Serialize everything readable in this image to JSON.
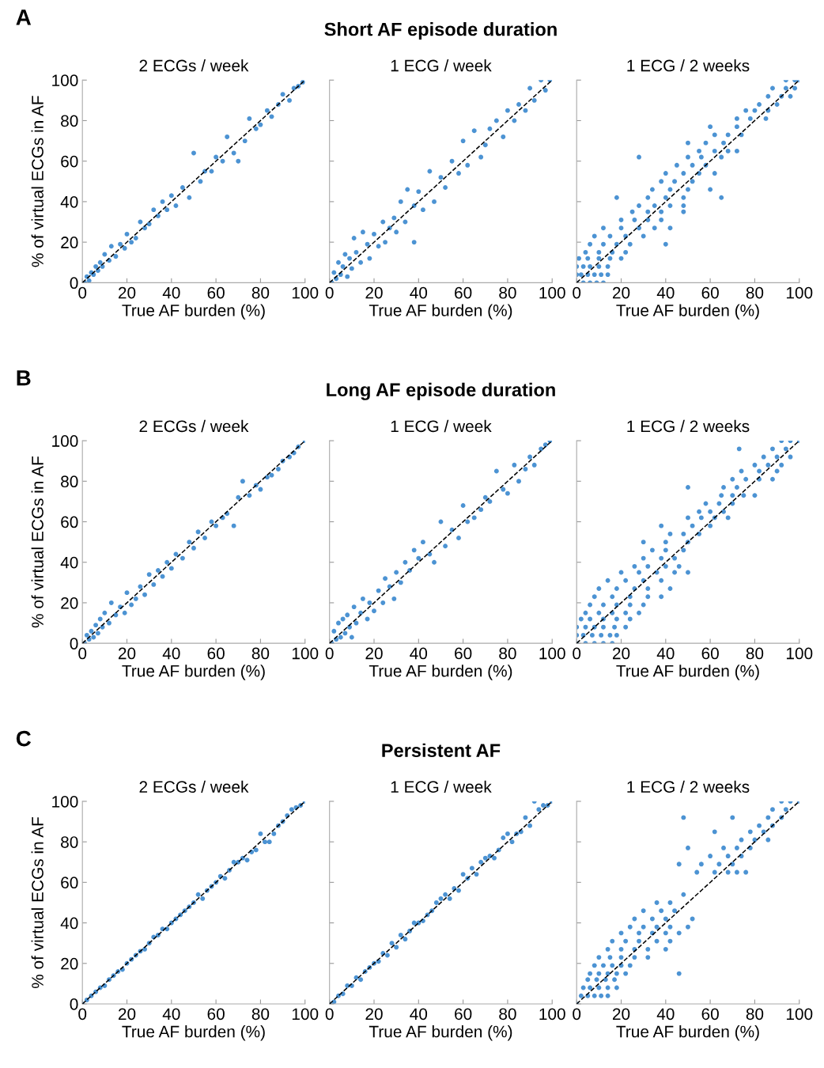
{
  "chart_data": [
    {
      "type": "scatter",
      "subtitle": "2 ECGs / week",
      "annotations": [
        "A"
      ],
      "xlabel": "True AF burden (%)",
      "ylabel": "% of virtual ECGs in AF",
      "xlim": [
        0,
        100
      ],
      "ylim": [
        0,
        100
      ],
      "xticks": [
        0,
        20,
        40,
        60,
        80,
        100
      ],
      "yticks": [
        0,
        20,
        40,
        60,
        80,
        100
      ],
      "grid": false,
      "series": [
        {
          "color": "#1f78c8",
          "marker": "circle",
          "x": [
            1,
            2,
            3,
            4,
            5,
            6,
            7,
            8,
            9,
            10,
            12,
            13,
            15,
            17,
            19,
            20,
            22,
            24,
            26,
            28,
            30,
            32,
            34,
            36,
            38,
            40,
            42,
            45,
            48,
            50,
            53,
            55,
            58,
            60,
            63,
            65,
            68,
            70,
            73,
            75,
            78,
            80,
            83,
            85,
            88,
            90,
            93,
            95,
            97,
            99
          ],
          "values": [
            0,
            3,
            1,
            5,
            4,
            8,
            6,
            10,
            8,
            14,
            11,
            18,
            13,
            19,
            17,
            24,
            20,
            22,
            30,
            27,
            29,
            36,
            33,
            40,
            36,
            43,
            38,
            47,
            42,
            64,
            50,
            55,
            55,
            62,
            60,
            72,
            64,
            60,
            70,
            81,
            76,
            78,
            85,
            82,
            88,
            93,
            90,
            96,
            97,
            99
          ]
        },
        {
          "type": "line",
          "color": "#000000",
          "line_style": "dashed",
          "marker": "none",
          "x": [
            0,
            100
          ],
          "values": [
            0,
            100
          ]
        }
      ]
    },
    {
      "type": "scatter",
      "title": "Short AF episode duration",
      "subtitle": "1 ECG / week",
      "xlabel": "True AF burden (%)",
      "xlim": [
        0,
        100
      ],
      "ylim": [
        0,
        100
      ],
      "xticks": [
        0,
        20,
        40,
        60,
        80,
        100
      ],
      "yticks": [
        0,
        20,
        40,
        60,
        80,
        100
      ],
      "tick_labels": "x",
      "grid": false,
      "series": [
        {
          "color": "#1f78c8",
          "marker": "circle",
          "x": [
            1,
            2,
            3,
            4,
            5,
            6,
            7,
            8,
            9,
            10,
            11,
            12,
            14,
            15,
            17,
            18,
            20,
            22,
            24,
            25,
            27,
            29,
            30,
            32,
            34,
            35,
            38,
            40,
            42,
            45,
            47,
            50,
            52,
            55,
            58,
            60,
            62,
            65,
            68,
            70,
            72,
            75,
            78,
            80,
            83,
            85,
            88,
            90,
            92,
            95,
            97,
            99,
            38
          ],
          "values": [
            0,
            5,
            2,
            10,
            4,
            8,
            14,
            3,
            12,
            7,
            22,
            15,
            10,
            25,
            19,
            12,
            24,
            18,
            30,
            20,
            27,
            32,
            25,
            40,
            30,
            46,
            38,
            45,
            36,
            55,
            40,
            52,
            47,
            60,
            54,
            70,
            58,
            75,
            62,
            68,
            76,
            80,
            72,
            85,
            80,
            88,
            85,
            96,
            90,
            100,
            95,
            100,
            20
          ]
        },
        {
          "type": "line",
          "color": "#000000",
          "line_style": "dashed",
          "marker": "none",
          "x": [
            0,
            100
          ],
          "values": [
            0,
            100
          ]
        }
      ]
    },
    {
      "type": "scatter",
      "subtitle": "1 ECG / 2 weeks",
      "xlabel": "True AF burden (%)",
      "xlim": [
        0,
        100
      ],
      "ylim": [
        0,
        100
      ],
      "xticks": [
        0,
        20,
        40,
        60,
        80,
        100
      ],
      "yticks": [
        0,
        20,
        40,
        60,
        80,
        100
      ],
      "tick_labels": "x",
      "grid": false,
      "series": [
        {
          "color": "#1f78c8",
          "marker": "circle",
          "x": [
            0,
            3,
            6,
            9,
            12,
            0,
            2,
            5,
            8,
            11,
            14,
            0,
            3,
            6,
            10,
            14,
            1,
            5,
            10,
            15,
            20,
            4,
            10,
            16,
            22,
            6,
            12,
            18,
            24,
            40,
            8,
            15,
            22,
            30,
            12,
            20,
            28,
            35,
            42,
            20,
            26,
            32,
            38,
            25,
            32,
            38,
            48,
            28,
            35,
            42,
            48,
            18,
            32,
            40,
            48,
            65,
            34,
            42,
            50,
            60,
            38,
            44,
            52,
            40,
            48,
            55,
            62,
            45,
            52,
            58,
            28,
            50,
            56,
            65,
            55,
            62,
            68,
            72,
            50,
            58,
            66,
            62,
            68,
            74,
            60,
            72,
            72,
            78,
            85,
            76,
            80,
            86,
            82,
            90,
            86,
            92,
            96,
            88,
            94,
            98,
            94,
            98,
            100
          ],
          "values": [
            0,
            0,
            0,
            0,
            0,
            4,
            4,
            4,
            4,
            4,
            4,
            8,
            8,
            8,
            8,
            8,
            12,
            12,
            12,
            12,
            12,
            15,
            15,
            15,
            15,
            19,
            19,
            19,
            19,
            19,
            23,
            23,
            23,
            23,
            27,
            27,
            27,
            27,
            27,
            31,
            31,
            31,
            31,
            35,
            35,
            35,
            35,
            38,
            38,
            38,
            38,
            42,
            42,
            42,
            42,
            42,
            46,
            46,
            46,
            46,
            50,
            50,
            50,
            54,
            54,
            54,
            54,
            58,
            58,
            58,
            62,
            62,
            62,
            62,
            65,
            65,
            65,
            65,
            69,
            69,
            69,
            73,
            73,
            73,
            77,
            77,
            81,
            81,
            81,
            85,
            85,
            85,
            88,
            88,
            92,
            92,
            92,
            96,
            96,
            96,
            100,
            100,
            100
          ]
        },
        {
          "type": "line",
          "color": "#000000",
          "line_style": "dashed",
          "marker": "none",
          "x": [
            0,
            100
          ],
          "values": [
            0,
            100
          ]
        }
      ]
    },
    {
      "type": "scatter",
      "subtitle": "2 ECGs / week",
      "annotations": [
        "B"
      ],
      "xlabel": "True AF burden (%)",
      "ylabel": "% of virtual ECGs in AF",
      "xlim": [
        0,
        100
      ],
      "ylim": [
        0,
        100
      ],
      "xticks": [
        0,
        20,
        40,
        60,
        80,
        100
      ],
      "yticks": [
        0,
        20,
        40,
        60,
        80,
        100
      ],
      "grid": false,
      "series": [
        {
          "color": "#1f78c8",
          "marker": "circle",
          "x": [
            1,
            2,
            3,
            4,
            5,
            6,
            7,
            8,
            9,
            10,
            12,
            13,
            15,
            17,
            19,
            20,
            22,
            24,
            26,
            28,
            30,
            32,
            34,
            36,
            38,
            40,
            42,
            45,
            48,
            50,
            52,
            55,
            58,
            60,
            63,
            65,
            68,
            70,
            72,
            75,
            78,
            80,
            83,
            85,
            88,
            90,
            93,
            95,
            97,
            100
          ],
          "values": [
            0,
            4,
            2,
            6,
            3,
            9,
            5,
            12,
            8,
            15,
            10,
            20,
            14,
            18,
            15,
            25,
            19,
            22,
            28,
            24,
            34,
            29,
            36,
            33,
            40,
            37,
            44,
            42,
            50,
            47,
            55,
            52,
            60,
            58,
            62,
            64,
            58,
            72,
            80,
            73,
            78,
            76,
            82,
            83,
            86,
            90,
            92,
            94,
            97,
            100
          ]
        },
        {
          "type": "line",
          "color": "#000000",
          "line_style": "dashed",
          "marker": "none",
          "x": [
            0,
            100
          ],
          "values": [
            0,
            100
          ]
        }
      ]
    },
    {
      "type": "scatter",
      "title": "Long AF episode duration",
      "subtitle": "1 ECG / week",
      "xlabel": "True AF burden (%)",
      "xlim": [
        0,
        100
      ],
      "ylim": [
        0,
        100
      ],
      "xticks": [
        0,
        20,
        40,
        60,
        80,
        100
      ],
      "yticks": [
        0,
        20,
        40,
        60,
        80,
        100
      ],
      "tick_labels": "x",
      "grid": false,
      "series": [
        {
          "color": "#1f78c8",
          "marker": "circle",
          "x": [
            1,
            2,
            3,
            4,
            5,
            6,
            7,
            8,
            9,
            10,
            11,
            12,
            14,
            15,
            17,
            18,
            20,
            22,
            24,
            25,
            27,
            29,
            30,
            32,
            34,
            36,
            38,
            40,
            42,
            45,
            47,
            50,
            52,
            55,
            58,
            60,
            62,
            65,
            68,
            70,
            72,
            75,
            78,
            80,
            83,
            85,
            88,
            90,
            92,
            95,
            97,
            99
          ],
          "values": [
            0,
            6,
            2,
            10,
            3,
            12,
            5,
            14,
            8,
            3,
            18,
            10,
            15,
            22,
            12,
            20,
            16,
            26,
            20,
            32,
            28,
            22,
            35,
            30,
            40,
            36,
            46,
            42,
            50,
            44,
            40,
            60,
            48,
            56,
            52,
            68,
            60,
            62,
            66,
            72,
            70,
            85,
            76,
            74,
            88,
            80,
            86,
            92,
            88,
            96,
            98,
            100
          ]
        },
        {
          "type": "line",
          "color": "#000000",
          "line_style": "dashed",
          "marker": "none",
          "x": [
            0,
            100
          ],
          "values": [
            0,
            100
          ]
        }
      ]
    },
    {
      "type": "scatter",
      "subtitle": "1 ECG / 2 weeks",
      "xlabel": "True AF burden (%)",
      "xlim": [
        0,
        100
      ],
      "ylim": [
        0,
        100
      ],
      "xticks": [
        0,
        20,
        40,
        60,
        80,
        100
      ],
      "yticks": [
        0,
        20,
        40,
        60,
        80,
        100
      ],
      "tick_labels": "x",
      "grid": false,
      "series": [
        {
          "color": "#1f78c8",
          "marker": "circle",
          "x": [
            0,
            4,
            8,
            12,
            16,
            0,
            3,
            7,
            11,
            15,
            18,
            0,
            4,
            8,
            12,
            17,
            22,
            2,
            6,
            12,
            18,
            24,
            4,
            10,
            16,
            22,
            28,
            6,
            12,
            18,
            24,
            30,
            8,
            16,
            24,
            32,
            38,
            10,
            18,
            26,
            32,
            42,
            14,
            22,
            30,
            38,
            20,
            28,
            36,
            44,
            50,
            26,
            32,
            40,
            46,
            30,
            38,
            44,
            34,
            40,
            48,
            30,
            40,
            50,
            42,
            48,
            55,
            38,
            52,
            60,
            50,
            56,
            62,
            68,
            55,
            60,
            66,
            58,
            64,
            70,
            65,
            70,
            75,
            80,
            50,
            66,
            72,
            70,
            76,
            82,
            88,
            74,
            82,
            90,
            80,
            86,
            92,
            84,
            90,
            96,
            73,
            88,
            94,
            92,
            96,
            100
          ],
          "values": [
            0,
            0,
            0,
            0,
            0,
            4,
            4,
            4,
            4,
            4,
            4,
            8,
            8,
            8,
            8,
            8,
            8,
            12,
            12,
            12,
            12,
            12,
            15,
            15,
            15,
            15,
            15,
            19,
            19,
            19,
            19,
            19,
            23,
            23,
            23,
            23,
            23,
            27,
            27,
            27,
            27,
            27,
            31,
            31,
            31,
            31,
            35,
            35,
            35,
            35,
            35,
            38,
            38,
            38,
            38,
            42,
            42,
            42,
            46,
            46,
            46,
            50,
            50,
            50,
            54,
            54,
            54,
            58,
            58,
            58,
            62,
            62,
            62,
            62,
            65,
            65,
            65,
            69,
            69,
            69,
            73,
            73,
            73,
            73,
            77,
            77,
            77,
            81,
            81,
            81,
            81,
            85,
            85,
            85,
            88,
            88,
            88,
            92,
            92,
            92,
            96,
            96,
            96,
            100,
            100,
            100
          ]
        },
        {
          "type": "line",
          "color": "#000000",
          "line_style": "dashed",
          "marker": "none",
          "x": [
            0,
            100
          ],
          "values": [
            0,
            100
          ]
        }
      ]
    },
    {
      "type": "scatter",
      "subtitle": "2 ECGs / week",
      "annotations": [
        "C"
      ],
      "xlabel": "True AF burden (%)",
      "ylabel": "% of virtual ECGs in AF",
      "xlim": [
        0,
        100
      ],
      "ylim": [
        0,
        100
      ],
      "xticks": [
        0,
        20,
        40,
        60,
        80,
        100
      ],
      "yticks": [
        0,
        20,
        40,
        60,
        80,
        100
      ],
      "grid": false,
      "series": [
        {
          "color": "#1f78c8",
          "marker": "circle",
          "x": [
            0,
            2,
            4,
            6,
            8,
            10,
            12,
            14,
            16,
            18,
            20,
            22,
            24,
            26,
            28,
            30,
            32,
            34,
            36,
            38,
            40,
            42,
            44,
            46,
            48,
            50,
            52,
            54,
            56,
            58,
            60,
            62,
            64,
            66,
            68,
            70,
            72,
            74,
            76,
            78,
            80,
            82,
            84,
            86,
            88,
            90,
            92,
            94,
            96,
            98,
            100
          ],
          "values": [
            0,
            2,
            4,
            6,
            8,
            9,
            12,
            14,
            16,
            17,
            20,
            22,
            24,
            26,
            27,
            30,
            33,
            34,
            37,
            37,
            40,
            42,
            44,
            46,
            48,
            50,
            54,
            52,
            56,
            58,
            60,
            63,
            62,
            66,
            70,
            70,
            72,
            71,
            75,
            76,
            84,
            80,
            80,
            84,
            88,
            90,
            93,
            96,
            97,
            98,
            100
          ]
        },
        {
          "type": "line",
          "color": "#000000",
          "line_style": "dashed",
          "marker": "none",
          "x": [
            0,
            100
          ],
          "values": [
            0,
            100
          ]
        }
      ]
    },
    {
      "type": "scatter",
      "title": "Persistent AF",
      "subtitle": "1 ECG / week",
      "xlabel": "True AF burden (%)",
      "xlim": [
        0,
        100
      ],
      "ylim": [
        0,
        100
      ],
      "xticks": [
        0,
        20,
        40,
        60,
        80,
        100
      ],
      "yticks": [
        0,
        20,
        40,
        60,
        80,
        100
      ],
      "tick_labels": "x",
      "grid": false,
      "series": [
        {
          "color": "#1f78c8",
          "marker": "circle",
          "x": [
            0,
            2,
            4,
            6,
            8,
            10,
            12,
            14,
            16,
            18,
            20,
            22,
            24,
            26,
            28,
            30,
            32,
            34,
            36,
            38,
            40,
            42,
            44,
            46,
            48,
            50,
            52,
            54,
            56,
            58,
            60,
            62,
            64,
            66,
            68,
            70,
            72,
            74,
            76,
            78,
            80,
            82,
            84,
            86,
            88,
            90,
            92,
            94,
            96,
            98,
            100
          ],
          "values": [
            0,
            1,
            4,
            5,
            9,
            9,
            13,
            12,
            16,
            18,
            20,
            21,
            25,
            24,
            30,
            28,
            34,
            32,
            36,
            40,
            40,
            41,
            44,
            46,
            50,
            52,
            54,
            52,
            57,
            56,
            64,
            62,
            67,
            64,
            70,
            72,
            73,
            72,
            76,
            82,
            84,
            80,
            84,
            85,
            92,
            88,
            100,
            96,
            98,
            98,
            100
          ]
        },
        {
          "type": "line",
          "color": "#000000",
          "line_style": "dashed",
          "marker": "none",
          "x": [
            0,
            100
          ],
          "values": [
            0,
            100
          ]
        }
      ]
    },
    {
      "type": "scatter",
      "subtitle": "1 ECG / 2 weeks",
      "xlabel": "True AF burden (%)",
      "xlim": [
        0,
        100
      ],
      "ylim": [
        0,
        100
      ],
      "xticks": [
        0,
        20,
        40,
        60,
        80,
        100
      ],
      "yticks": [
        0,
        20,
        40,
        60,
        80,
        100
      ],
      "tick_labels": "x",
      "grid": false,
      "series": [
        {
          "color": "#1f78c8",
          "marker": "circle",
          "x": [
            0,
            2,
            5,
            8,
            11,
            14,
            3,
            6,
            10,
            14,
            18,
            5,
            9,
            13,
            17,
            6,
            10,
            14,
            18,
            22,
            46,
            8,
            12,
            16,
            20,
            24,
            10,
            15,
            20,
            26,
            32,
            14,
            20,
            26,
            32,
            40,
            16,
            22,
            28,
            36,
            42,
            20,
            28,
            34,
            40,
            46,
            24,
            30,
            36,
            42,
            50,
            26,
            34,
            40,
            52,
            30,
            38,
            44,
            36,
            42,
            48,
            54,
            62,
            68,
            72,
            76,
            46,
            56,
            64,
            70,
            60,
            68,
            74,
            50,
            66,
            72,
            78,
            74,
            80,
            86,
            62,
            78,
            84,
            82,
            88,
            48,
            70,
            86,
            92,
            88,
            94,
            92,
            96,
            100
          ],
          "values": [
            0,
            4,
            4,
            4,
            4,
            4,
            8,
            8,
            8,
            8,
            8,
            12,
            12,
            12,
            12,
            15,
            15,
            15,
            15,
            15,
            15,
            19,
            19,
            19,
            19,
            19,
            23,
            23,
            23,
            23,
            23,
            27,
            27,
            27,
            27,
            27,
            31,
            31,
            31,
            31,
            31,
            35,
            35,
            35,
            35,
            35,
            38,
            38,
            38,
            38,
            38,
            42,
            42,
            42,
            42,
            46,
            46,
            46,
            50,
            50,
            54,
            65,
            65,
            65,
            65,
            65,
            69,
            69,
            69,
            69,
            73,
            73,
            73,
            77,
            77,
            77,
            77,
            81,
            81,
            81,
            85,
            85,
            85,
            88,
            88,
            92,
            92,
            92,
            92,
            96,
            96,
            100,
            100,
            100
          ]
        },
        {
          "type": "line",
          "color": "#000000",
          "line_style": "dashed",
          "marker": "none",
          "x": [
            0,
            100
          ],
          "values": [
            0,
            100
          ]
        }
      ]
    }
  ]
}
